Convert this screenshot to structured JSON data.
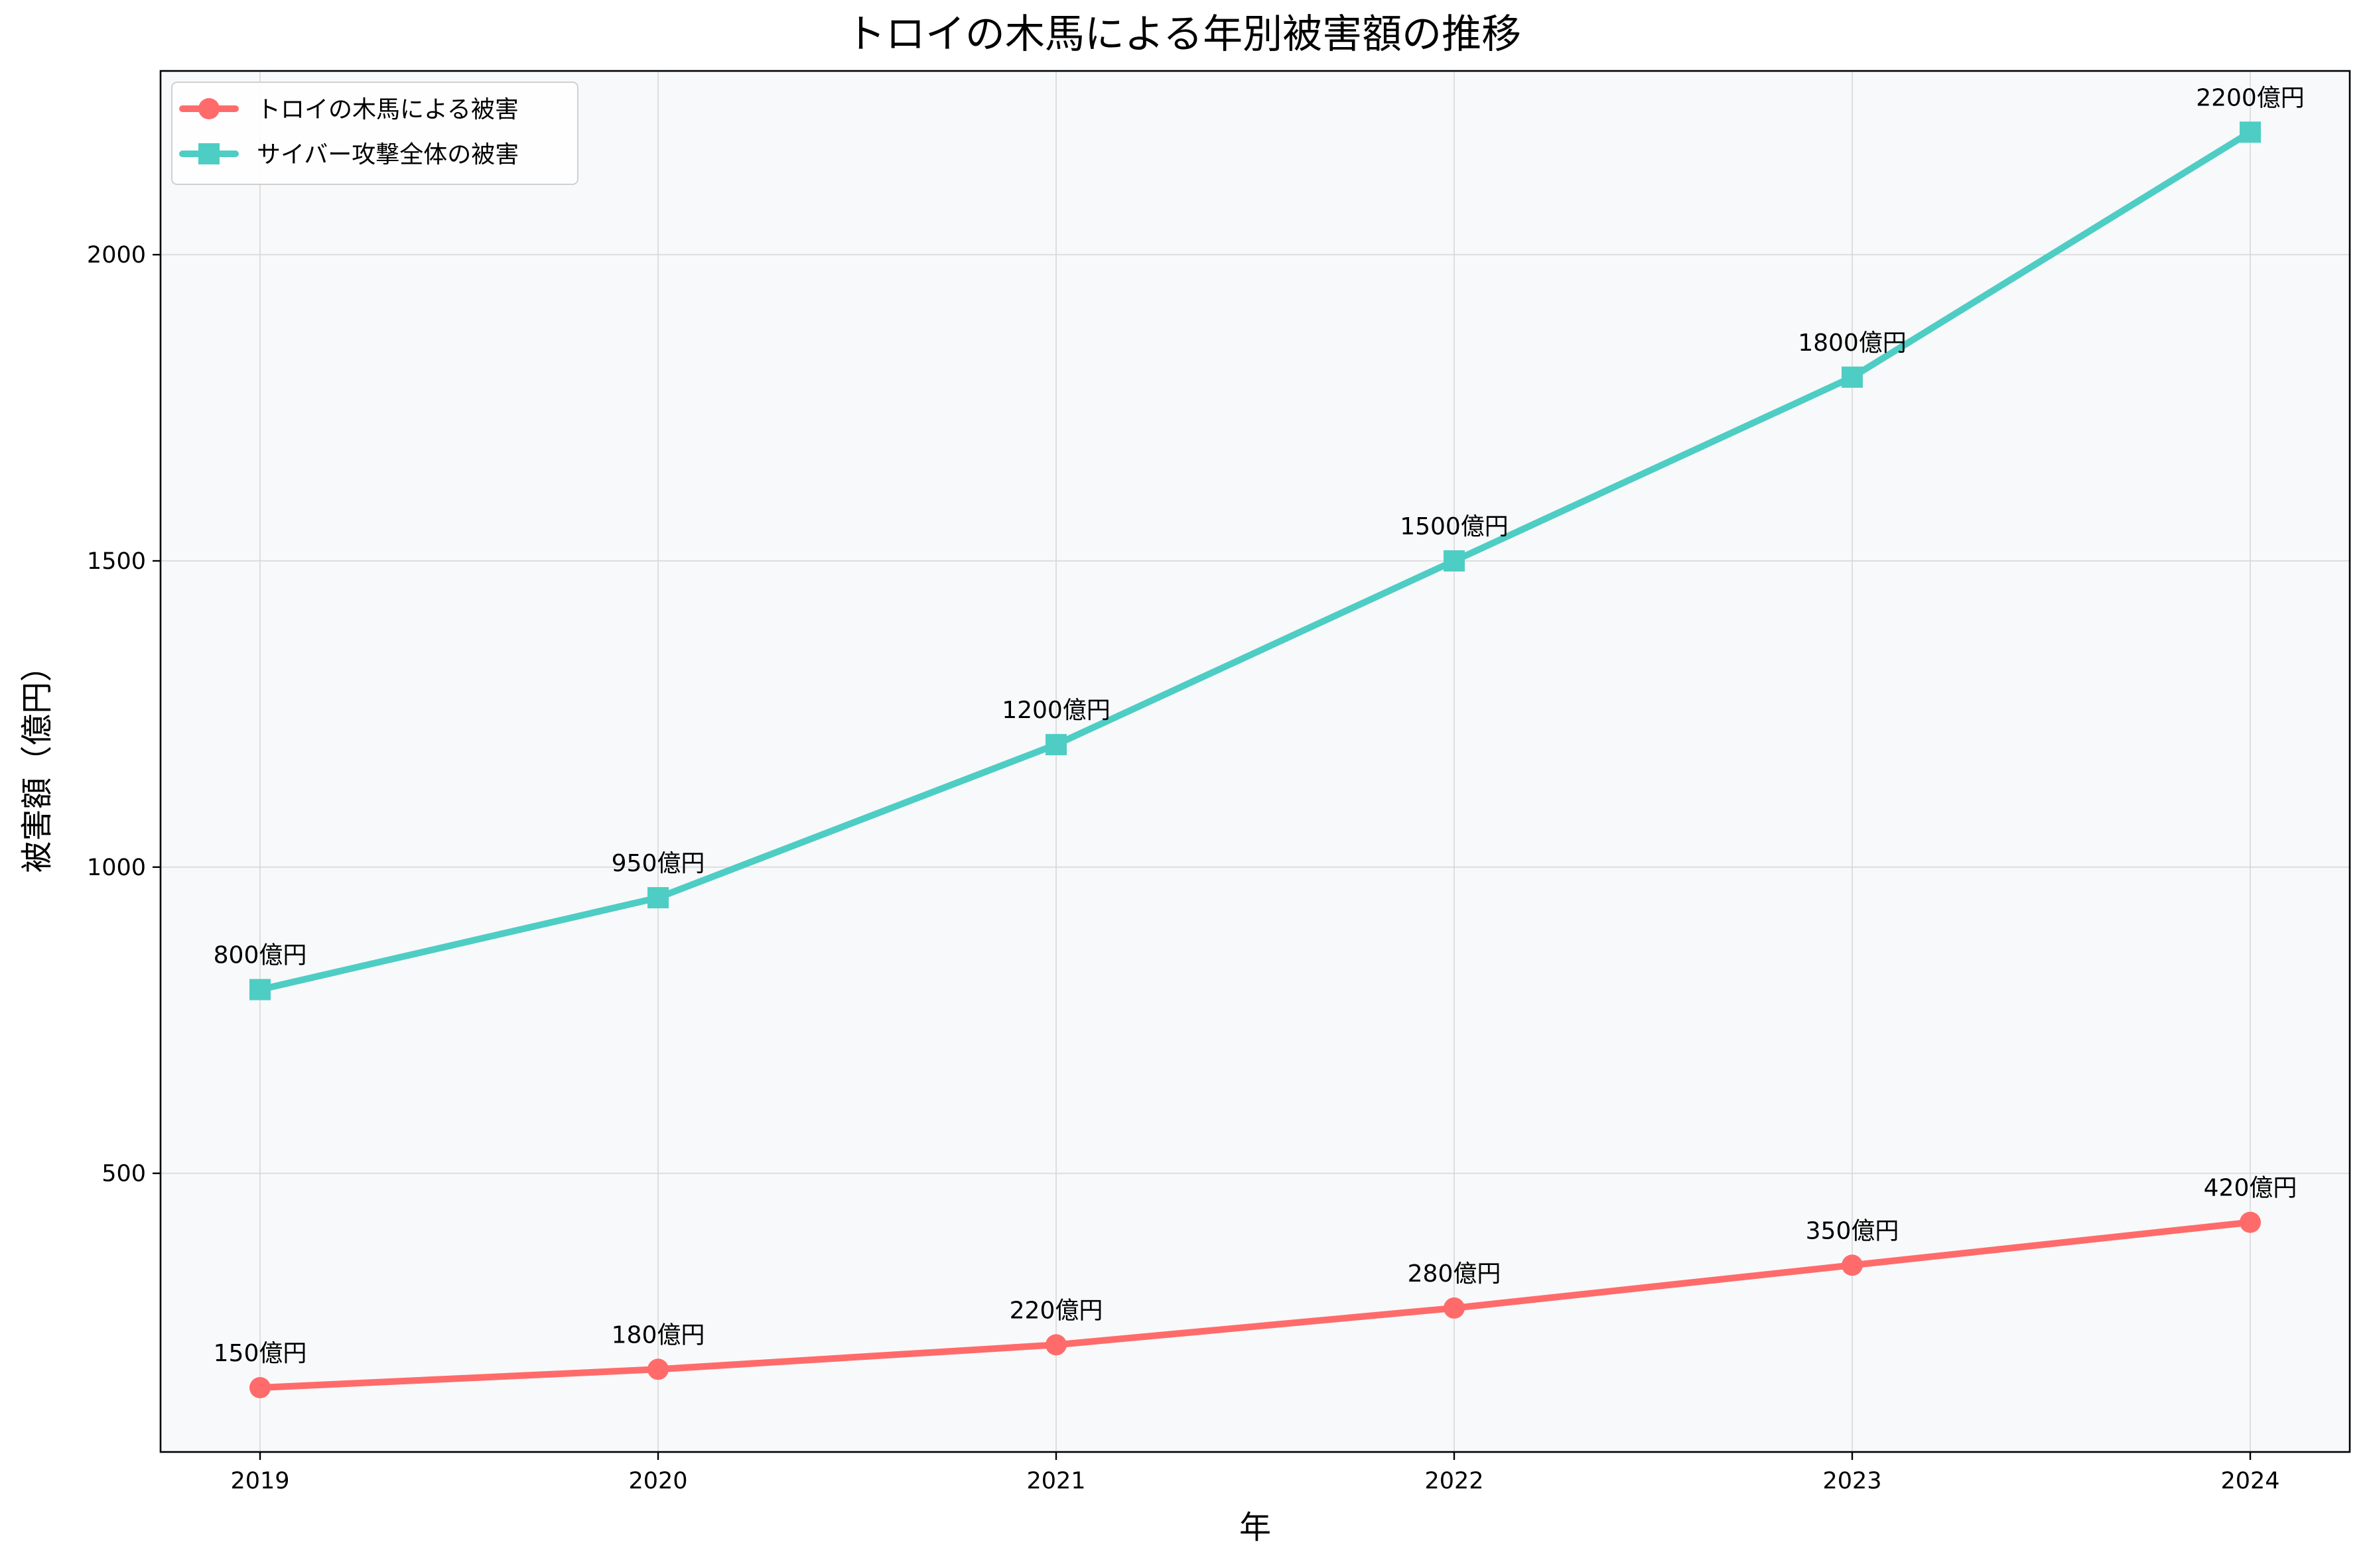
{
  "chart_data": {
    "type": "line",
    "title": "トロイの木馬による年別被害額の推移",
    "xlabel": "年",
    "ylabel": "被害額（億円）",
    "x": [
      2019,
      2020,
      2021,
      2022,
      2023,
      2024
    ],
    "x_tick_labels": [
      "2019",
      "2020",
      "2021",
      "2022",
      "2023",
      "2024"
    ],
    "xlim": [
      2018.75,
      2024.25
    ],
    "ylim": [
      45,
      2300
    ],
    "y_ticks": [
      500,
      1000,
      1500,
      2000
    ],
    "y_tick_labels": [
      "500",
      "1000",
      "1500",
      "2000"
    ],
    "grid": true,
    "legend_position": "top-left",
    "series": [
      {
        "name": "トロイの木馬による被害",
        "values": [
          150,
          180,
          220,
          280,
          350,
          420
        ],
        "data_labels": [
          "150億円",
          "180億円",
          "220億円",
          "280億円",
          "350億円",
          "420億円"
        ],
        "color": "#ff6b6b",
        "marker": "circle"
      },
      {
        "name": "サイバー攻撃全体の被害",
        "values": [
          800,
          950,
          1200,
          1500,
          1800,
          2200
        ],
        "data_labels": [
          "800億円",
          "950億円",
          "1200億円",
          "1500億円",
          "1800億円",
          "2200億円"
        ],
        "color": "#4ecdc4",
        "marker": "square"
      }
    ]
  },
  "colors": {
    "plot_background": "#f8f9fa",
    "grid": "#d6d6d6"
  }
}
